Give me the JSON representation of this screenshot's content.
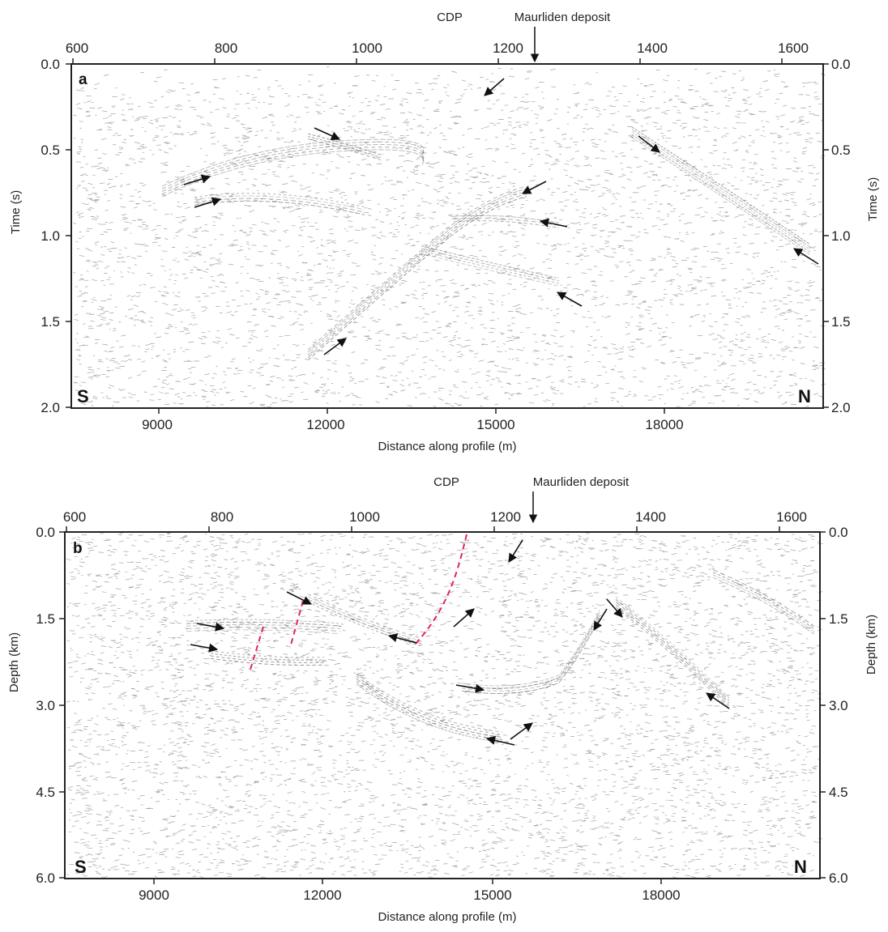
{
  "panels": [
    {
      "id": "a",
      "letter": "a",
      "cdp_label": "CDP",
      "deposit_label": "Maurliden deposit",
      "cdp_ticks": [
        "600",
        "800",
        "1000",
        "1200",
        "1400",
        "1600"
      ],
      "distance_ticks": [
        "9000",
        "12000",
        "15000",
        "18000"
      ],
      "vertical_ticks": [
        "0.0",
        "0.5",
        "1.0",
        "1.5",
        "2.0"
      ],
      "vertical_label": "Time (s)",
      "x_label": "Distance along profile (m)",
      "left_end": "S",
      "right_end": "N"
    },
    {
      "id": "b",
      "letter": "b",
      "cdp_label": "CDP",
      "deposit_label": "Maurliden deposit",
      "cdp_ticks": [
        "600",
        "800",
        "1000",
        "1200",
        "1400",
        "1600"
      ],
      "distance_ticks": [
        "9000",
        "12000",
        "15000",
        "18000"
      ],
      "vertical_ticks": [
        "0.0",
        "1.5",
        "3.0",
        "4.5",
        "6.0"
      ],
      "vertical_label": "Depth (km)",
      "x_label": "Distance along profile (m)",
      "left_end": "S",
      "right_end": "N"
    }
  ],
  "colors": {
    "frame": "#222222",
    "arrow": "#111111",
    "fault_dashes": "#e0245e",
    "noise": "#555555"
  }
}
